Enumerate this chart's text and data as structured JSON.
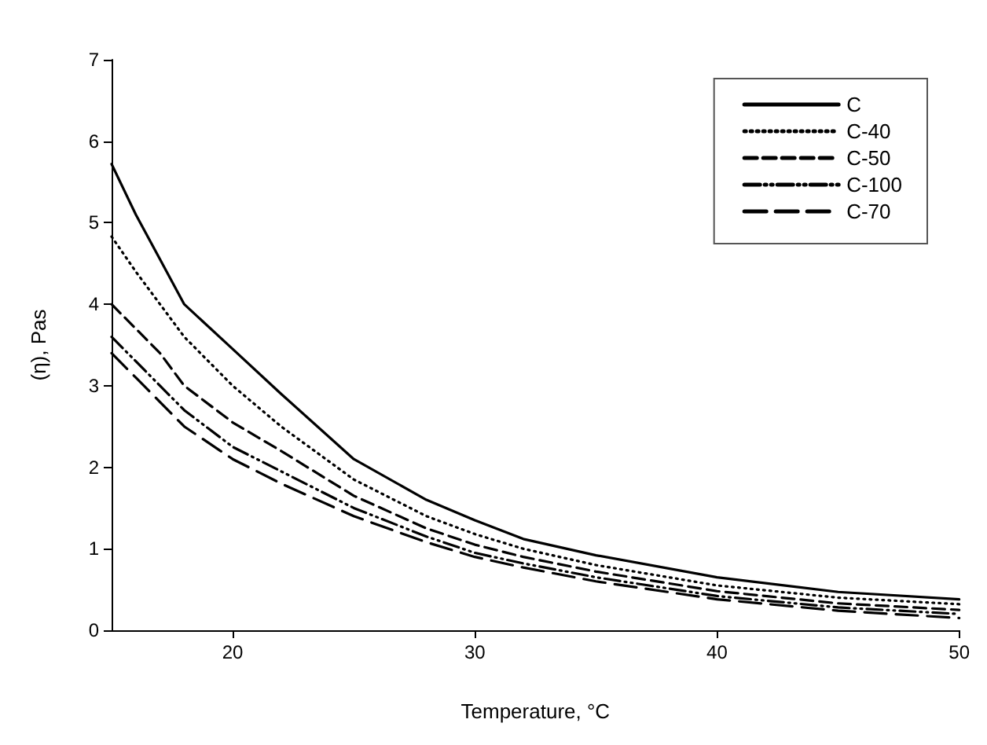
{
  "chart_data": {
    "type": "line",
    "xlabel": "Temperature, °C",
    "ylabel": "(η), Pas",
    "x": [
      15,
      16,
      17,
      18,
      20,
      22,
      25,
      28,
      30,
      32,
      35,
      40,
      45,
      50
    ],
    "series": [
      {
        "name": "C",
        "color": "#000000",
        "line_style": "solid",
        "values": [
          5.72,
          5.1,
          4.55,
          4.0,
          3.45,
          2.9,
          2.1,
          1.6,
          1.35,
          1.12,
          0.92,
          0.65,
          0.47,
          0.38
        ]
      },
      {
        "name": "C-40",
        "color": "#000000",
        "line_style": "dotted",
        "values": [
          4.83,
          4.4,
          4.0,
          3.6,
          3.0,
          2.5,
          1.85,
          1.4,
          1.18,
          1.0,
          0.8,
          0.55,
          0.4,
          0.32
        ]
      },
      {
        "name": "C-50",
        "color": "#000000",
        "line_style": "dashed",
        "values": [
          4.0,
          3.7,
          3.4,
          3.0,
          2.55,
          2.2,
          1.65,
          1.25,
          1.05,
          0.9,
          0.72,
          0.48,
          0.33,
          0.25
        ]
      },
      {
        "name": "C-100",
        "color": "#000000",
        "line_style": "dashdot",
        "values": [
          3.6,
          3.3,
          3.0,
          2.7,
          2.25,
          1.95,
          1.5,
          1.15,
          0.95,
          0.82,
          0.65,
          0.42,
          0.28,
          0.2
        ]
      },
      {
        "name": "C-70",
        "color": "#000000",
        "line_style": "longdash",
        "values": [
          3.4,
          3.1,
          2.8,
          2.5,
          2.1,
          1.8,
          1.4,
          1.08,
          0.9,
          0.77,
          0.6,
          0.38,
          0.24,
          0.15
        ]
      }
    ],
    "xlim": [
      15,
      50
    ],
    "xticks": [
      20,
      30,
      40,
      50
    ],
    "ylim": [
      0,
      7
    ],
    "yticks": [
      0,
      1,
      2,
      3,
      4,
      5,
      6,
      7
    ],
    "grid": false,
    "legend": "top right",
    "marker": "none"
  }
}
